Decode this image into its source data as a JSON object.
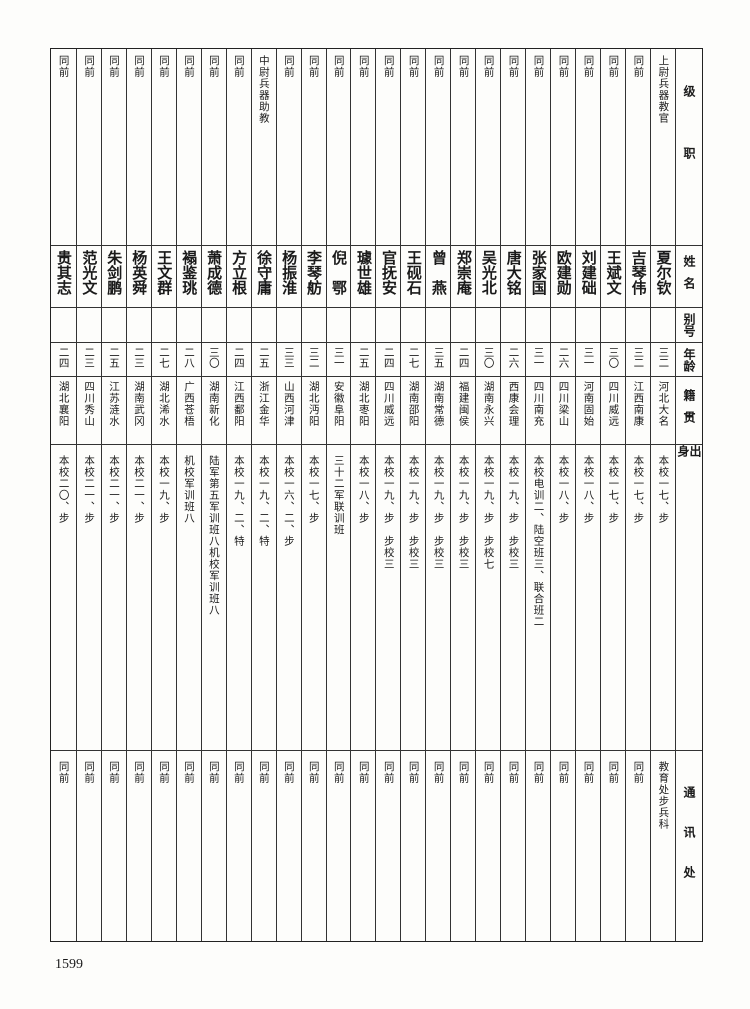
{
  "headers": {
    "rank": "级职",
    "name": "姓名",
    "alias": "别号",
    "age": "年龄",
    "native": "籍贯",
    "origin": "出身",
    "address": "通讯处"
  },
  "rows": [
    {
      "rank": "上尉兵器教官",
      "name": "夏尔钦",
      "alias": "",
      "age": "三二",
      "native": "河北大名",
      "origin": "本校一七、步",
      "address": "教育处步兵科"
    },
    {
      "rank": "同前",
      "name": "吉琴伟",
      "alias": "",
      "age": "三二",
      "native": "江西南康",
      "origin": "本校一七、步",
      "address": "同前"
    },
    {
      "rank": "同前",
      "name": "王斌文",
      "alias": "",
      "age": "三〇",
      "native": "四川威远",
      "origin": "本校一七、步",
      "address": "同前"
    },
    {
      "rank": "同前",
      "name": "刘建础",
      "alias": "",
      "age": "三一",
      "native": "河南固始",
      "origin": "本校一八、步",
      "address": "同前"
    },
    {
      "rank": "同前",
      "name": "欧建勋",
      "alias": "",
      "age": "二六",
      "native": "四川梁山",
      "origin": "本校一八、步",
      "address": "同前"
    },
    {
      "rank": "同前",
      "name": "张家国",
      "alias": "",
      "age": "三一",
      "native": "四川南充",
      "origin": "本校电训二、陆空班三、联合班二",
      "address": "同前"
    },
    {
      "rank": "同前",
      "name": "唐大铭",
      "alias": "",
      "age": "二六",
      "native": "西康会理",
      "origin": "本校一九、步　步校三",
      "address": "同前"
    },
    {
      "rank": "同前",
      "name": "吴光北",
      "alias": "",
      "age": "三〇",
      "native": "湖南永兴",
      "origin": "本校一九、步　步校七",
      "address": "同前"
    },
    {
      "rank": "同前",
      "name": "郑崇庵",
      "alias": "",
      "age": "二四",
      "native": "福建闽侯",
      "origin": "本校一九、步　步校三",
      "address": "同前"
    },
    {
      "rank": "同前",
      "name": "曾　燕",
      "alias": "",
      "age": "三五",
      "native": "湖南常德",
      "origin": "本校一九、步　步校三",
      "address": "同前"
    },
    {
      "rank": "同前",
      "name": "王砚石",
      "alias": "",
      "age": "二七",
      "native": "湖南邵阳",
      "origin": "本校一九、步　步校三",
      "address": "同前"
    },
    {
      "rank": "同前",
      "name": "官抚安",
      "alias": "",
      "age": "二四",
      "native": "四川威远",
      "origin": "本校一九、步　步校三",
      "address": "同前"
    },
    {
      "rank": "同前",
      "name": "璩世雄",
      "alias": "",
      "age": "二五",
      "native": "湖北枣阳",
      "origin": "本校一八、步",
      "address": "同前"
    },
    {
      "rank": "同前",
      "name": "倪　鄂",
      "alias": "",
      "age": "三一",
      "native": "安徽阜阳",
      "origin": "三十二军联训班",
      "address": "同前"
    },
    {
      "rank": "同前",
      "name": "李琴舫",
      "alias": "",
      "age": "三二",
      "native": "湖北沔阳",
      "origin": "本校一七、步",
      "address": "同前"
    },
    {
      "rank": "同前",
      "name": "杨振淮",
      "alias": "",
      "age": "三三",
      "native": "山西河津",
      "origin": "本校一六、二、步",
      "address": "同前"
    },
    {
      "rank": "中尉兵器助教",
      "name": "徐守庸",
      "alias": "",
      "age": "二五",
      "native": "浙江金华",
      "origin": "本校一九、二、特",
      "address": "同前"
    },
    {
      "rank": "同前",
      "name": "方立根",
      "alias": "",
      "age": "二四",
      "native": "江西鄱阳",
      "origin": "本校一九、二、特",
      "address": "同前"
    },
    {
      "rank": "同前",
      "name": "萧成德",
      "alias": "",
      "age": "三〇",
      "native": "湖南新化",
      "origin": "陆军第五军训班八机校军训班八",
      "address": "同前"
    },
    {
      "rank": "同前",
      "name": "褟鉴珧",
      "alias": "",
      "age": "二八",
      "native": "广西苍梧",
      "origin": "机校军训班八",
      "address": "同前"
    },
    {
      "rank": "同前",
      "name": "王文群",
      "alias": "",
      "age": "二七",
      "native": "湖北浠水",
      "origin": "本校一九、步",
      "address": "同前"
    },
    {
      "rank": "同前",
      "name": "杨英舜",
      "alias": "",
      "age": "二三",
      "native": "湖南武冈",
      "origin": "本校二一、步",
      "address": "同前"
    },
    {
      "rank": "同前",
      "name": "朱剑鹏",
      "alias": "",
      "age": "二五",
      "native": "江苏涟水",
      "origin": "本校二一、步",
      "address": "同前"
    },
    {
      "rank": "同前",
      "name": "范光文",
      "alias": "",
      "age": "二三",
      "native": "四川秀山",
      "origin": "本校二一、步",
      "address": "同前"
    },
    {
      "rank": "同前",
      "name": "贵其志",
      "alias": "",
      "age": "二四",
      "native": "湖北襄阳",
      "origin": "本校二〇、步",
      "address": "同前"
    }
  ],
  "page_number": "1599"
}
